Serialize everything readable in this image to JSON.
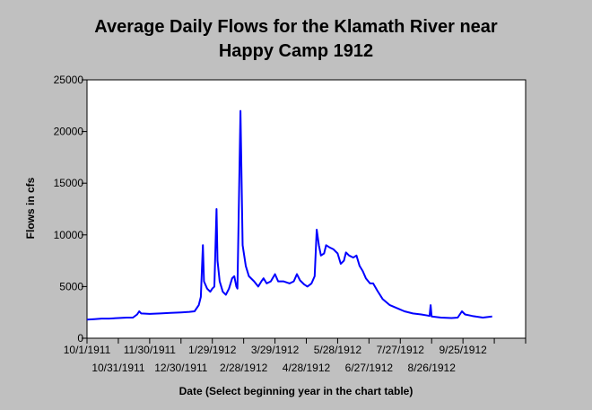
{
  "chart_data": {
    "type": "line",
    "title_line1": "Average Daily Flows for the Klamath River near",
    "title_line2": "Happy Camp 1912",
    "xlabel": "Date (Select beginning year in the chart table)",
    "ylabel": "Flows in cfs",
    "ylim": [
      0,
      25000
    ],
    "yticks": [
      0,
      5000,
      10000,
      15000,
      20000,
      25000
    ],
    "ytick_labels": [
      "0",
      "5000",
      "10000",
      "15000",
      "20000",
      "25000"
    ],
    "xlim": [
      "1911-10-01",
      "1912-11-24"
    ],
    "xticks": [
      "1911-10-01",
      "1911-10-31",
      "1911-11-30",
      "1911-12-30",
      "1912-01-29",
      "1912-02-28",
      "1912-03-29",
      "1912-04-28",
      "1912-05-28",
      "1912-06-27",
      "1912-07-27",
      "1912-08-26",
      "1912-09-25",
      "1912-10-25",
      "1912-11-24"
    ],
    "xtick_labels": [
      "10/1/1911",
      "10/31/1911",
      "11/30/1911",
      "12/30/1911",
      "1/29/1912",
      "2/28/1912",
      "3/29/1912",
      "4/28/1912",
      "5/28/1912",
      "6/27/1912",
      "7/27/1912",
      "8/26/1912",
      "9/25/1912",
      "",
      ""
    ],
    "grid": false,
    "series": [
      {
        "color": "#0000ff",
        "points": [
          [
            "1911-10-01",
            1800
          ],
          [
            "1911-10-08",
            1850
          ],
          [
            "1911-10-15",
            1900
          ],
          [
            "1911-10-22",
            1900
          ],
          [
            "1911-10-31",
            1950
          ],
          [
            "1911-11-08",
            2000
          ],
          [
            "1911-11-14",
            2000
          ],
          [
            "1911-11-18",
            2300
          ],
          [
            "1911-11-20",
            2600
          ],
          [
            "1911-11-22",
            2400
          ],
          [
            "1911-11-30",
            2350
          ],
          [
            "1911-12-10",
            2400
          ],
          [
            "1911-12-20",
            2450
          ],
          [
            "1911-12-30",
            2500
          ],
          [
            "1912-01-07",
            2550
          ],
          [
            "1912-01-12",
            2600
          ],
          [
            "1912-01-16",
            3200
          ],
          [
            "1912-01-18",
            4000
          ],
          [
            "1912-01-20",
            9000
          ],
          [
            "1912-01-21",
            5500
          ],
          [
            "1912-01-24",
            4800
          ],
          [
            "1912-01-27",
            4500
          ],
          [
            "1912-01-29",
            4800
          ],
          [
            "1912-01-31",
            5000
          ],
          [
            "1912-02-02",
            12500
          ],
          [
            "1912-02-03",
            7500
          ],
          [
            "1912-02-05",
            5500
          ],
          [
            "1912-02-08",
            4500
          ],
          [
            "1912-02-11",
            4200
          ],
          [
            "1912-02-14",
            4800
          ],
          [
            "1912-02-17",
            5800
          ],
          [
            "1912-02-19",
            6000
          ],
          [
            "1912-02-21",
            5000
          ],
          [
            "1912-02-22",
            4800
          ],
          [
            "1912-02-25",
            22000
          ],
          [
            "1912-02-27",
            9000
          ],
          [
            "1912-03-01",
            7000
          ],
          [
            "1912-03-04",
            6000
          ],
          [
            "1912-03-09",
            5500
          ],
          [
            "1912-03-13",
            5000
          ],
          [
            "1912-03-16",
            5500
          ],
          [
            "1912-03-18",
            5800
          ],
          [
            "1912-03-21",
            5300
          ],
          [
            "1912-03-25",
            5500
          ],
          [
            "1912-03-29",
            6200
          ],
          [
            "1912-04-01",
            5500
          ],
          [
            "1912-04-06",
            5500
          ],
          [
            "1912-04-12",
            5300
          ],
          [
            "1912-04-16",
            5500
          ],
          [
            "1912-04-19",
            6200
          ],
          [
            "1912-04-22",
            5600
          ],
          [
            "1912-04-26",
            5200
          ],
          [
            "1912-04-29",
            5000
          ],
          [
            "1912-05-03",
            5300
          ],
          [
            "1912-05-06",
            6000
          ],
          [
            "1912-05-08",
            10500
          ],
          [
            "1912-05-10",
            9000
          ],
          [
            "1912-05-12",
            8000
          ],
          [
            "1912-05-15",
            8200
          ],
          [
            "1912-05-17",
            9000
          ],
          [
            "1912-05-20",
            8800
          ],
          [
            "1912-05-24",
            8600
          ],
          [
            "1912-05-28",
            8200
          ],
          [
            "1912-05-31",
            7200
          ],
          [
            "1912-06-03",
            7500
          ],
          [
            "1912-06-05",
            8300
          ],
          [
            "1912-06-08",
            8000
          ],
          [
            "1912-06-12",
            7800
          ],
          [
            "1912-06-15",
            8000
          ],
          [
            "1912-06-18",
            7000
          ],
          [
            "1912-06-21",
            6500
          ],
          [
            "1912-06-24",
            5800
          ],
          [
            "1912-06-28",
            5300
          ],
          [
            "1912-07-01",
            5300
          ],
          [
            "1912-07-05",
            4600
          ],
          [
            "1912-07-10",
            3800
          ],
          [
            "1912-07-17",
            3200
          ],
          [
            "1912-07-24",
            2900
          ],
          [
            "1912-07-31",
            2600
          ],
          [
            "1912-08-08",
            2400
          ],
          [
            "1912-08-16",
            2300
          ],
          [
            "1912-08-22",
            2200
          ],
          [
            "1912-08-24",
            2150
          ],
          [
            "1912-08-25",
            3200
          ],
          [
            "1912-08-26",
            2100
          ],
          [
            "1912-09-04",
            2000
          ],
          [
            "1912-09-14",
            1950
          ],
          [
            "1912-09-20",
            2000
          ],
          [
            "1912-09-24",
            2600
          ],
          [
            "1912-09-27",
            2300
          ],
          [
            "1912-10-04",
            2150
          ],
          [
            "1912-10-14",
            2000
          ],
          [
            "1912-10-23",
            2100
          ]
        ]
      }
    ]
  }
}
